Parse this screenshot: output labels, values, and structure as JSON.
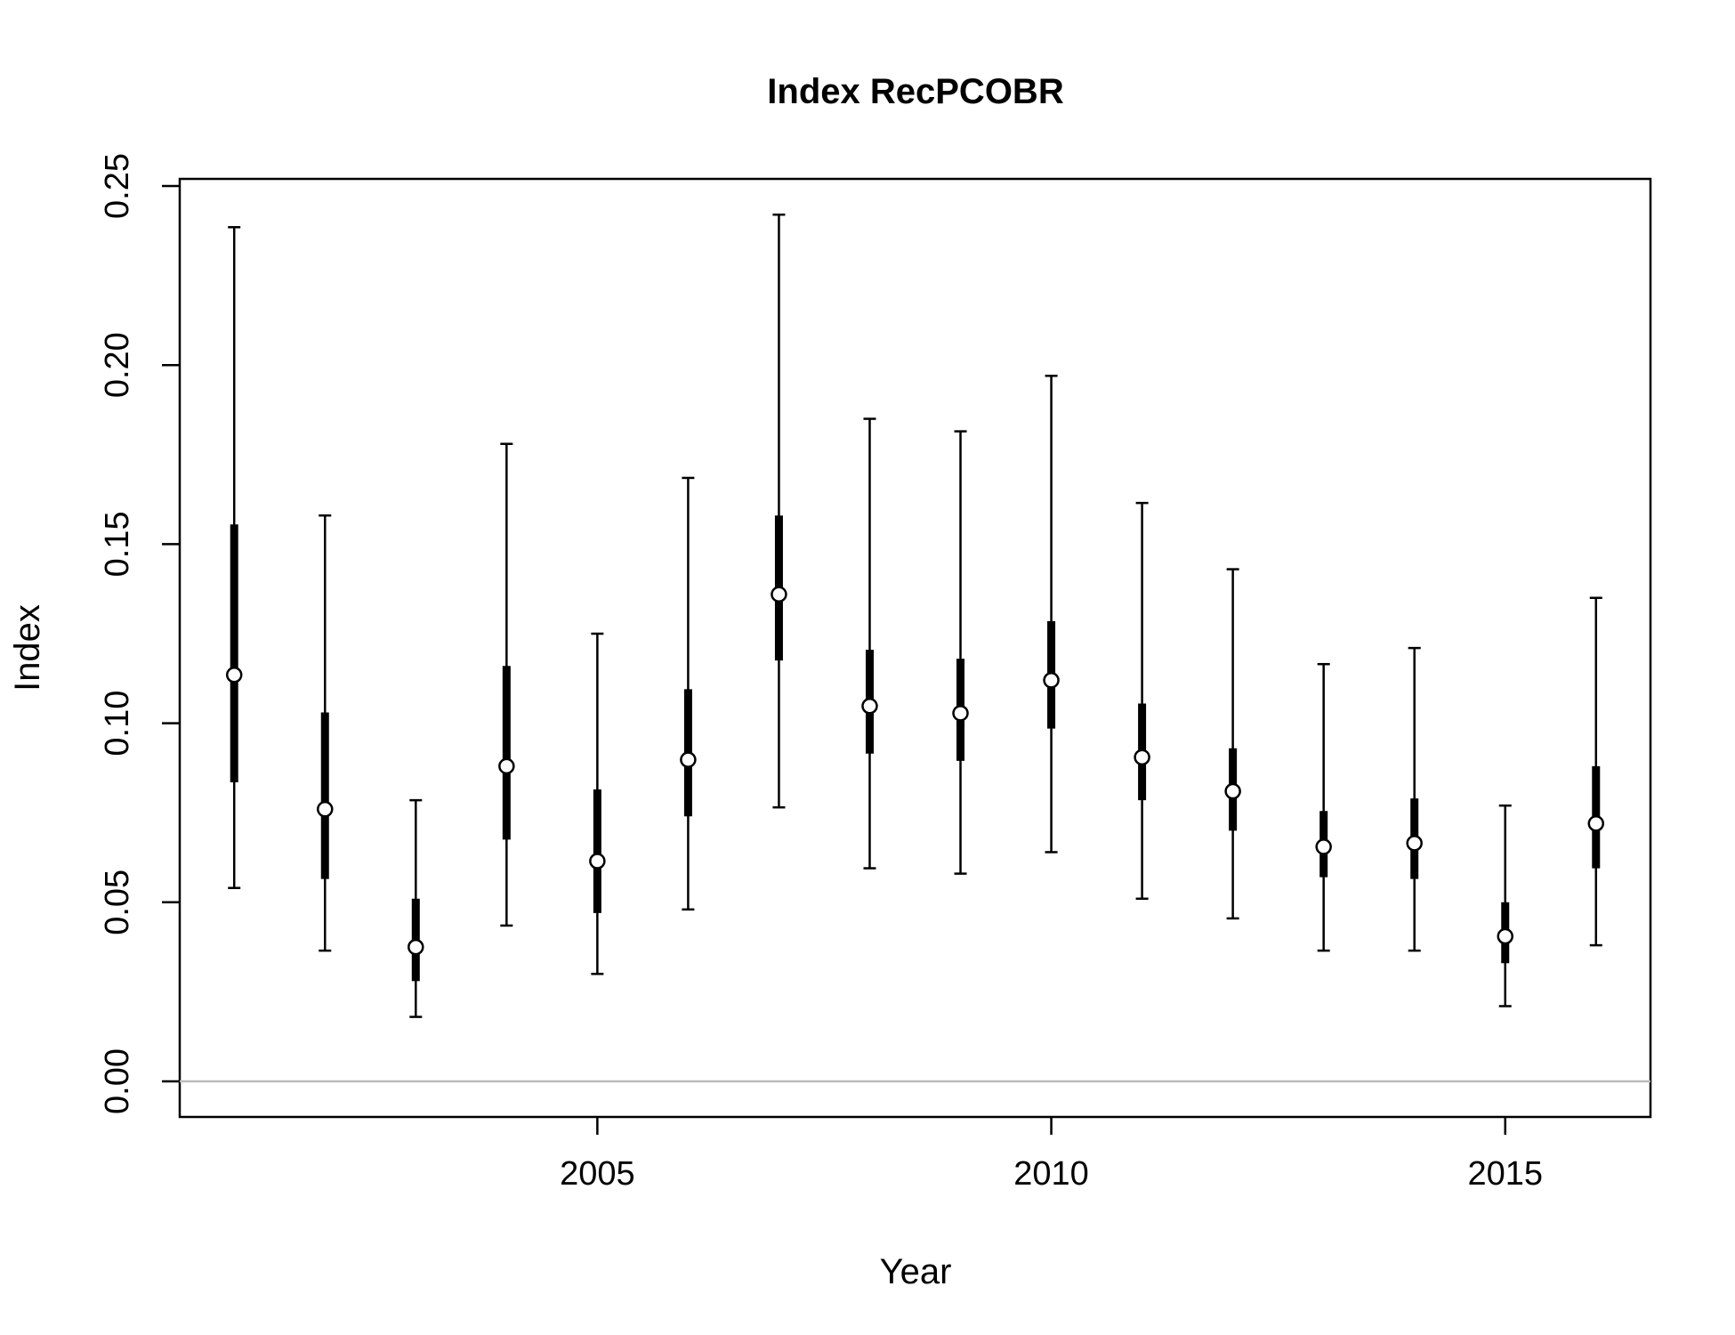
{
  "chart_data": {
    "type": "interval",
    "title": "Index RecPCOBR",
    "xlabel": "Year",
    "ylabel": "Index",
    "xlim": [
      2000.4,
      2016.6
    ],
    "ylim": [
      0,
      0.25
    ],
    "x_ticks": [
      2005,
      2010,
      2015
    ],
    "y_ticks": [
      0.0,
      0.05,
      0.1,
      0.15,
      0.2,
      0.25
    ],
    "x_tick_labels": [
      "2005",
      "2010",
      "2015"
    ],
    "y_tick_labels": [
      "0.00",
      "0.05",
      "0.10",
      "0.15",
      "0.20",
      "0.25"
    ],
    "reference_line": {
      "y": 0,
      "color": "#bbbbbb"
    },
    "grid": false,
    "points": [
      {
        "x": 2001,
        "y": 0.1135,
        "inner_low": 0.0835,
        "inner_high": 0.1555,
        "outer_low": 0.054,
        "outer_high": 0.2385
      },
      {
        "x": 2002,
        "y": 0.076,
        "inner_low": 0.0565,
        "inner_high": 0.103,
        "outer_low": 0.0365,
        "outer_high": 0.158
      },
      {
        "x": 2003,
        "y": 0.0375,
        "inner_low": 0.028,
        "inner_high": 0.051,
        "outer_low": 0.018,
        "outer_high": 0.0785
      },
      {
        "x": 2004,
        "y": 0.088,
        "inner_low": 0.0675,
        "inner_high": 0.116,
        "outer_low": 0.0435,
        "outer_high": 0.178
      },
      {
        "x": 2005,
        "y": 0.0615,
        "inner_low": 0.047,
        "inner_high": 0.0815,
        "outer_low": 0.03,
        "outer_high": 0.125
      },
      {
        "x": 2006,
        "y": 0.0898,
        "inner_low": 0.074,
        "inner_high": 0.1095,
        "outer_low": 0.048,
        "outer_high": 0.1685
      },
      {
        "x": 2007,
        "y": 0.136,
        "inner_low": 0.1175,
        "inner_high": 0.158,
        "outer_low": 0.0765,
        "outer_high": 0.242
      },
      {
        "x": 2008,
        "y": 0.1048,
        "inner_low": 0.0915,
        "inner_high": 0.1205,
        "outer_low": 0.0595,
        "outer_high": 0.185
      },
      {
        "x": 2009,
        "y": 0.1028,
        "inner_low": 0.0895,
        "inner_high": 0.118,
        "outer_low": 0.058,
        "outer_high": 0.1815
      },
      {
        "x": 2010,
        "y": 0.112,
        "inner_low": 0.0985,
        "inner_high": 0.1285,
        "outer_low": 0.064,
        "outer_high": 0.197
      },
      {
        "x": 2011,
        "y": 0.0905,
        "inner_low": 0.0785,
        "inner_high": 0.1055,
        "outer_low": 0.051,
        "outer_high": 0.1615
      },
      {
        "x": 2012,
        "y": 0.081,
        "inner_low": 0.07,
        "inner_high": 0.093,
        "outer_low": 0.0455,
        "outer_high": 0.143
      },
      {
        "x": 2013,
        "y": 0.0655,
        "inner_low": 0.057,
        "inner_high": 0.0755,
        "outer_low": 0.0365,
        "outer_high": 0.1165
      },
      {
        "x": 2014,
        "y": 0.0665,
        "inner_low": 0.0565,
        "inner_high": 0.079,
        "outer_low": 0.0365,
        "outer_high": 0.121
      },
      {
        "x": 2015,
        "y": 0.0405,
        "inner_low": 0.033,
        "inner_high": 0.05,
        "outer_low": 0.021,
        "outer_high": 0.077
      },
      {
        "x": 2016,
        "y": 0.072,
        "inner_low": 0.0595,
        "inner_high": 0.088,
        "outer_low": 0.038,
        "outer_high": 0.135
      }
    ]
  }
}
